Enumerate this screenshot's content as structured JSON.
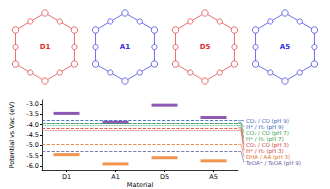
{
  "chart_data": {
    "type": "scatter",
    "marker": "rect",
    "ylabel": "Potential vs Vac (eV)",
    "xlabel": "Material",
    "categories": [
      "D1",
      "A1",
      "D5",
      "A5"
    ],
    "series": [
      {
        "color": "#7030a0",
        "values": [
          -3.45,
          -3.88,
          -3.05,
          -3.65
        ]
      },
      {
        "color": "#f07820",
        "values": [
          -5.45,
          -5.9,
          -5.6,
          -5.75
        ]
      }
    ],
    "ylim": [
      -6.2,
      -2.8
    ],
    "yticks": [
      {
        "value": -6,
        "label": "-6.0"
      },
      {
        "value": -5.5,
        "label": "-5.5"
      },
      {
        "value": -5,
        "label": "-5.0"
      },
      {
        "value": -4.5,
        "label": "-4.5"
      },
      {
        "value": -4,
        "label": "-4.0"
      },
      {
        "value": -3.5,
        "label": "-3.5"
      },
      {
        "value": -3,
        "label": "-3.0"
      }
    ],
    "grid": false,
    "reference_lines": [
      {
        "label": "CO₂ / CO (pH 9)",
        "value": -3.8,
        "color": "#2e5cb8",
        "line_style": "dashed"
      },
      {
        "label": "H⁺ / H₂ (pH 9)",
        "value": -3.91,
        "color": "#2e5cb8",
        "line_style": "dotted"
      },
      {
        "label": "CO₂ / CO (pH 7)",
        "value": -3.92,
        "color": "#2e9e4a",
        "line_style": "dashed"
      },
      {
        "label": "H⁺ / H₂ (pH 7)",
        "value": -4.03,
        "color": "#2e9e4a",
        "line_style": "dotted"
      },
      {
        "label": "CO₂ / CO (pH 3)",
        "value": -4.15,
        "color": "#d03838",
        "line_style": "dashed"
      },
      {
        "label": "H⁺ / H₂ (pH 3)",
        "value": -4.26,
        "color": "#d03838",
        "line_style": "dotted"
      },
      {
        "label": "DHA / AA (pH 3)",
        "value": -4.95,
        "color": "#e0702a",
        "line_style": "dashed"
      },
      {
        "label": "TeOA⁺ / TeOA (pH 9)",
        "value": -5.3,
        "color": "#5a5a9a",
        "line_style": "dashed"
      }
    ]
  },
  "structures": [
    {
      "label": "D1",
      "color": "#e03030"
    },
    {
      "label": "A1",
      "color": "#3030e0"
    },
    {
      "label": "D5",
      "color": "#e03030"
    },
    {
      "label": "A5",
      "color": "#3030e0"
    }
  ]
}
